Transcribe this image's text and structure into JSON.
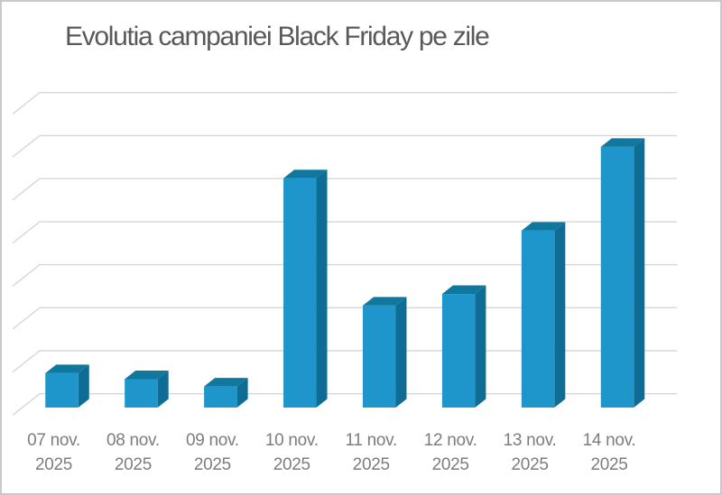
{
  "window": {
    "background": "#ffffff",
    "border_color": "#c9c9c9"
  },
  "chart_data": {
    "type": "bar",
    "style": "3d-column",
    "title": "Evolutia campaniei Black Friday pe zile",
    "categories": [
      "07 nov. 2025",
      "08 nov. 2025",
      "09 nov. 2025",
      "10 nov. 2025",
      "11 nov. 2025",
      "12 nov. 2025",
      "13 nov. 2025",
      "14 nov. 2025"
    ],
    "category_label_lines": [
      [
        "07 nov.",
        "2025"
      ],
      [
        "08 nov.",
        "2025"
      ],
      [
        "09 nov.",
        "2025"
      ],
      [
        "10 nov.",
        "2025"
      ],
      [
        "11 nov.",
        "2025"
      ],
      [
        "12 nov.",
        "2025"
      ],
      [
        "13 nov.",
        "2025"
      ],
      [
        "14 nov.",
        "2025"
      ]
    ],
    "values_gridline_units": [
      0.8,
      0.66,
      0.49,
      5.33,
      2.37,
      2.64,
      4.11,
      6.06
    ],
    "y_axis": {
      "labels_visible": false,
      "gridlines": 8,
      "unit_range": [
        0,
        7
      ]
    },
    "xlabel": "",
    "ylabel": "",
    "legend": "none",
    "colors": {
      "bar_front": "#1f96cb",
      "bar_top": "#10789f",
      "bar_side": "#0f6c94",
      "gridline": "#d7d7d7",
      "title": "#595959",
      "axis_label": "#7d7d7d"
    }
  }
}
